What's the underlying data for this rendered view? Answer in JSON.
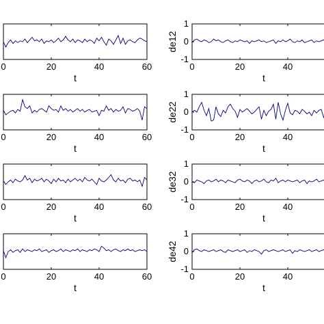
{
  "chart_data": [
    {
      "type": "line",
      "ylabel": "",
      "xlabel": "t",
      "xlim": [
        0,
        60
      ],
      "ylim": [
        -1,
        1
      ],
      "x_ticks": [
        "0",
        "20",
        "40",
        "60"
      ],
      "y_ticks": [],
      "x": [
        0,
        1,
        2,
        3,
        4,
        5,
        6,
        7,
        8,
        9,
        10,
        11,
        12,
        13,
        14,
        15,
        16,
        17,
        18,
        19,
        20,
        21,
        22,
        23,
        24,
        25,
        26,
        27,
        28,
        29,
        30,
        31,
        32,
        33,
        34,
        35,
        36,
        37,
        38,
        39,
        40,
        41,
        42,
        43,
        44,
        45,
        46,
        47,
        48,
        49,
        50,
        51,
        52,
        53,
        54,
        55,
        56,
        57,
        58,
        59,
        60
      ],
      "values": [
        0.0,
        -0.3,
        -0.05,
        0.1,
        -0.1,
        0.05,
        -0.05,
        0.05,
        0.0,
        0.15,
        -0.05,
        0.1,
        0.25,
        0.05,
        0.1,
        0.0,
        0.15,
        -0.1,
        0.05,
        0.0,
        0.1,
        -0.05,
        0.05,
        0.2,
        0.0,
        0.1,
        0.3,
        0.1,
        0.0,
        0.15,
        -0.05,
        0.1,
        0.05,
        -0.05,
        0.15,
        0.0,
        0.1,
        0.05,
        -0.1,
        0.2,
        0.05,
        0.25,
        0.0,
        -0.2,
        0.15,
        0.05,
        -0.15,
        0.1,
        0.35,
        -0.1,
        0.2,
        -0.15,
        0.05,
        0.1,
        0.0,
        -0.05,
        0.1,
        0.2,
        0.15,
        0.05,
        0.0
      ]
    },
    {
      "type": "line",
      "ylabel": "de12",
      "xlabel": "t",
      "xlim": [
        0,
        60
      ],
      "ylim": [
        -1,
        1
      ],
      "x_ticks": [
        "0",
        "20",
        "40"
      ],
      "y_ticks": [
        "1",
        "0",
        "-1"
      ],
      "x": [
        0,
        1,
        2,
        3,
        4,
        5,
        6,
        7,
        8,
        9,
        10,
        11,
        12,
        13,
        14,
        15,
        16,
        17,
        18,
        19,
        20,
        21,
        22,
        23,
        24,
        25,
        26,
        27,
        28,
        29,
        30,
        31,
        32,
        33,
        34,
        35,
        36,
        37,
        38,
        39,
        40,
        41,
        42,
        43,
        44,
        45,
        46,
        47,
        48,
        49,
        50,
        51,
        52,
        53,
        54,
        55,
        56,
        57,
        58,
        59,
        60
      ],
      "values": [
        -0.05,
        0.1,
        0.15,
        0.05,
        0.0,
        0.1,
        0.05,
        -0.05,
        0.0,
        0.15,
        0.05,
        0.1,
        0.0,
        -0.05,
        0.05,
        0.1,
        0.0,
        -0.05,
        0.05,
        0.0,
        0.1,
        0.05,
        0.0,
        0.05,
        -0.1,
        0.05,
        0.0,
        0.05,
        0.1,
        0.0,
        0.05,
        -0.05,
        0.0,
        0.05,
        0.1,
        -0.1,
        0.05,
        0.0,
        0.1,
        0.0,
        0.05,
        0.15,
        0.0,
        -0.05,
        0.05,
        0.0,
        0.1,
        -0.05,
        0.0,
        0.05,
        0.1,
        -0.05,
        0.05,
        0.0,
        0.05,
        0.1,
        0.0,
        0.05,
        0.1,
        0.15,
        0.05
      ]
    },
    {
      "type": "line",
      "ylabel": "",
      "xlabel": "t",
      "xlim": [
        0,
        60
      ],
      "ylim": [
        -1,
        1
      ],
      "x_ticks": [
        "0",
        "20",
        "40",
        "60"
      ],
      "y_ticks": [],
      "x": [
        0,
        1,
        2,
        3,
        4,
        5,
        6,
        7,
        8,
        9,
        10,
        11,
        12,
        13,
        14,
        15,
        16,
        17,
        18,
        19,
        20,
        21,
        22,
        23,
        24,
        25,
        26,
        27,
        28,
        29,
        30,
        31,
        32,
        33,
        34,
        35,
        36,
        37,
        38,
        39,
        40,
        41,
        42,
        43,
        44,
        45,
        46,
        47,
        48,
        49,
        50,
        51,
        52,
        53,
        54,
        55,
        56,
        57,
        58,
        59,
        60
      ],
      "values": [
        0.1,
        -0.15,
        -0.05,
        0.05,
        0.1,
        -0.05,
        0.15,
        0.05,
        0.7,
        0.3,
        0.2,
        0.35,
        -0.05,
        0.1,
        0.0,
        0.15,
        0.2,
        0.1,
        0.0,
        0.35,
        0.2,
        0.1,
        0.15,
        0.0,
        0.35,
        0.1,
        0.2,
        0.05,
        0.15,
        0.0,
        0.1,
        0.2,
        0.05,
        0.15,
        0.0,
        0.1,
        0.15,
        0.0,
        0.05,
        0.1,
        -0.2,
        0.1,
        0.05,
        0.35,
        0.1,
        0.2,
        0.0,
        0.15,
        0.05,
        0.1,
        0.3,
        -0.05,
        0.2,
        0.15,
        0.05,
        0.1,
        0.2,
        0.05,
        -0.45,
        0.3,
        0.2
      ]
    },
    {
      "type": "line",
      "ylabel": "de22",
      "xlabel": "t",
      "xlim": [
        0,
        60
      ],
      "ylim": [
        -1,
        1
      ],
      "x_ticks": [
        "0",
        "20",
        "40"
      ],
      "y_ticks": [
        "1",
        "0",
        "-1"
      ],
      "x": [
        0,
        1,
        2,
        3,
        4,
        5,
        6,
        7,
        8,
        9,
        10,
        11,
        12,
        13,
        14,
        15,
        16,
        17,
        18,
        19,
        20,
        21,
        22,
        23,
        24,
        25,
        26,
        27,
        28,
        29,
        30,
        31,
        32,
        33,
        34,
        35,
        36,
        37,
        38,
        39,
        40,
        41,
        42,
        43,
        44,
        45,
        46,
        47,
        48,
        49,
        50,
        51,
        52,
        53,
        54,
        55,
        56,
        57,
        58,
        59,
        60
      ],
      "values": [
        0.0,
        0.1,
        0.0,
        0.3,
        0.55,
        0.1,
        -0.2,
        0.2,
        -0.5,
        -0.45,
        0.3,
        -0.1,
        -0.25,
        0.1,
        -0.05,
        0.3,
        0.45,
        0.2,
        0.05,
        -0.3,
        0.15,
        0.0,
        0.1,
        0.2,
        0.05,
        -0.1,
        0.0,
        0.15,
        0.3,
        -0.4,
        0.1,
        -0.2,
        0.05,
        0.15,
        0.45,
        -0.4,
        0.55,
        -0.1,
        -0.45,
        0.1,
        0.5,
        -0.05,
        -0.15,
        0.1,
        0.05,
        -0.1,
        0.15,
        0.05,
        -0.1,
        0.0,
        -0.2,
        0.1,
        -0.05,
        0.1,
        0.15,
        -0.3,
        0.05,
        0.0,
        0.15,
        0.25,
        0.3
      ]
    },
    {
      "type": "line",
      "ylabel": "",
      "xlabel": "t",
      "xlim": [
        0,
        60
      ],
      "ylim": [
        -1,
        1
      ],
      "x_ticks": [
        "0",
        "20",
        "40",
        "60"
      ],
      "y_ticks": [],
      "x": [
        0,
        1,
        2,
        3,
        4,
        5,
        6,
        7,
        8,
        9,
        10,
        11,
        12,
        13,
        14,
        15,
        16,
        17,
        18,
        19,
        20,
        21,
        22,
        23,
        24,
        25,
        26,
        27,
        28,
        29,
        30,
        31,
        32,
        33,
        34,
        35,
        36,
        37,
        38,
        39,
        40,
        41,
        42,
        43,
        44,
        45,
        46,
        47,
        48,
        49,
        50,
        51,
        52,
        53,
        54,
        55,
        56,
        57,
        58,
        59,
        60
      ],
      "values": [
        0.05,
        -0.15,
        0.0,
        0.1,
        -0.05,
        0.15,
        0.05,
        0.0,
        0.1,
        0.35,
        0.1,
        0.2,
        -0.05,
        0.15,
        0.05,
        0.1,
        0.2,
        0.0,
        0.15,
        0.05,
        -0.1,
        0.15,
        0.0,
        0.2,
        0.05,
        0.1,
        -0.05,
        0.15,
        0.0,
        0.1,
        0.2,
        0.05,
        0.15,
        0.0,
        0.25,
        0.1,
        0.05,
        0.15,
        0.0,
        -0.15,
        0.2,
        0.05,
        0.0,
        0.1,
        0.25,
        0.4,
        0.1,
        0.0,
        0.2,
        0.05,
        0.1,
        -0.05,
        0.15,
        0.2,
        0.05,
        0.1,
        0.0,
        0.1,
        -0.25,
        0.25,
        0.1
      ]
    },
    {
      "type": "line",
      "ylabel": "de32",
      "xlabel": "t",
      "xlim": [
        0,
        60
      ],
      "ylim": [
        -1,
        1
      ],
      "x_ticks": [
        "0",
        "20",
        "40"
      ],
      "y_ticks": [
        "1",
        "0",
        "-1"
      ],
      "x": [
        0,
        1,
        2,
        3,
        4,
        5,
        6,
        7,
        8,
        9,
        10,
        11,
        12,
        13,
        14,
        15,
        16,
        17,
        18,
        19,
        20,
        21,
        22,
        23,
        24,
        25,
        26,
        27,
        28,
        29,
        30,
        31,
        32,
        33,
        34,
        35,
        36,
        37,
        38,
        39,
        40,
        41,
        42,
        43,
        44,
        45,
        46,
        47,
        48,
        49,
        50,
        51,
        52,
        53,
        54,
        55,
        56,
        57,
        58,
        59,
        60
      ],
      "values": [
        0.0,
        -0.05,
        0.1,
        0.05,
        0.0,
        -0.1,
        0.05,
        0.1,
        0.0,
        0.05,
        0.15,
        0.0,
        0.1,
        0.05,
        -0.05,
        0.1,
        0.05,
        0.0,
        -0.05,
        0.1,
        0.15,
        0.05,
        0.0,
        0.1,
        0.05,
        -0.1,
        0.05,
        0.1,
        0.0,
        0.05,
        0.15,
        0.0,
        -0.05,
        0.1,
        0.05,
        0.2,
        -0.05,
        0.05,
        0.1,
        0.0,
        0.1,
        0.05,
        0.0,
        0.05,
        0.1,
        -0.05,
        0.05,
        0.1,
        -0.1,
        0.05,
        0.0,
        0.05,
        0.15,
        0.0,
        0.05,
        0.1,
        0.0,
        -0.05,
        0.1,
        0.05,
        0.0
      ]
    },
    {
      "type": "line",
      "ylabel": "",
      "xlabel": "t",
      "xlim": [
        0,
        60
      ],
      "ylim": [
        -1,
        1
      ],
      "x_ticks": [
        "0",
        "20",
        "40",
        "60"
      ],
      "y_ticks": [],
      "x": [
        0,
        1,
        2,
        3,
        4,
        5,
        6,
        7,
        8,
        9,
        10,
        11,
        12,
        13,
        14,
        15,
        16,
        17,
        18,
        19,
        20,
        21,
        22,
        23,
        24,
        25,
        26,
        27,
        28,
        29,
        30,
        31,
        32,
        33,
        34,
        35,
        36,
        37,
        38,
        39,
        40,
        41,
        42,
        43,
        44,
        45,
        46,
        47,
        48,
        49,
        50,
        51,
        52,
        53,
        54,
        55,
        56,
        57,
        58,
        59,
        60
      ],
      "values": [
        0.05,
        -0.35,
        0.0,
        0.1,
        -0.05,
        0.05,
        0.1,
        -0.05,
        0.15,
        0.0,
        0.1,
        0.05,
        0.0,
        0.1,
        0.05,
        0.15,
        0.0,
        0.05,
        0.1,
        -0.05,
        0.05,
        0.1,
        0.0,
        0.05,
        0.15,
        0.0,
        0.1,
        0.05,
        0.0,
        0.1,
        0.05,
        0.15,
        0.0,
        0.1,
        0.05,
        0.0,
        0.1,
        0.05,
        0.15,
        0.1,
        0.0,
        0.3,
        0.2,
        0.05,
        0.1,
        0.0,
        0.1,
        0.15,
        0.05,
        0.0,
        0.1,
        0.05,
        0.15,
        0.05,
        0.1,
        0.0,
        0.05,
        0.1,
        0.05,
        0.1,
        0.0
      ]
    },
    {
      "type": "line",
      "ylabel": "de42",
      "xlabel": "t",
      "xlim": [
        0,
        60
      ],
      "ylim": [
        -1,
        1
      ],
      "x_ticks": [
        "0",
        "20",
        "40"
      ],
      "y_ticks": [
        "1",
        "0",
        "-1"
      ],
      "x": [
        0,
        1,
        2,
        3,
        4,
        5,
        6,
        7,
        8,
        9,
        10,
        11,
        12,
        13,
        14,
        15,
        16,
        17,
        18,
        19,
        20,
        21,
        22,
        23,
        24,
        25,
        26,
        27,
        28,
        29,
        30,
        31,
        32,
        33,
        34,
        35,
        36,
        37,
        38,
        39,
        40,
        41,
        42,
        43,
        44,
        45,
        46,
        47,
        48,
        49,
        50,
        51,
        52,
        53,
        54,
        55,
        56,
        57,
        58,
        59,
        60
      ],
      "values": [
        -0.05,
        0.1,
        0.15,
        0.05,
        0.0,
        0.1,
        0.05,
        0.0,
        0.05,
        0.1,
        0.0,
        0.05,
        0.1,
        0.0,
        -0.05,
        0.1,
        0.05,
        0.0,
        0.05,
        0.1,
        0.0,
        0.05,
        0.1,
        -0.05,
        0.05,
        0.0,
        0.1,
        0.05,
        0.0,
        -0.15,
        0.05,
        0.1,
        0.0,
        0.05,
        0.1,
        0.05,
        0.0,
        0.05,
        0.1,
        0.0,
        0.05,
        0.1,
        -0.1,
        0.05,
        0.0,
        0.1,
        0.05,
        0.0,
        0.05,
        0.1,
        0.0,
        0.05,
        0.1,
        0.0,
        0.05,
        0.1,
        0.0,
        0.05,
        0.1,
        0.05,
        0.0
      ]
    }
  ]
}
